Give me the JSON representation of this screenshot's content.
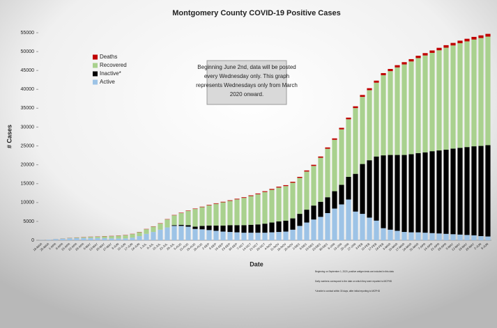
{
  "chart_data": {
    "type": "stacked_bar",
    "title": "Montgomery County COVID-19 Positive Cases",
    "y_label": "# Cases",
    "x_label": "Date",
    "categories": [
      "18-MAR",
      "25-MAR",
      "1-APR",
      "8-APR",
      "15-APR",
      "22-APR",
      "29-APR",
      "6-MAY",
      "13-MAY",
      "20-MAY",
      "27-MAY",
      "3-JUN",
      "10-JUN",
      "17-JUN",
      "24-JUN",
      "1-JUL",
      "8-JUL",
      "15-JUL",
      "22-JUL",
      "29-JUL",
      "5-AUG",
      "12-AUG",
      "19-AUG",
      "26-AUG",
      "2-SEP",
      "9-SEP",
      "16-SEP",
      "23-SEP",
      "30-SEP",
      "7-OCT",
      "14-OCT",
      "21-OCT",
      "28-OCT",
      "4-NOV",
      "11-NOV",
      "18-NOV",
      "25-NOV",
      "2-DEC",
      "9-DEC",
      "16-DEC",
      "23-DEC",
      "30-DEC",
      "6-JAN",
      "13-JAN",
      "20-JAN",
      "27-JAN",
      "3-FEB",
      "10-FEB",
      "17-FEB",
      "24-FEB",
      "3-MAR",
      "10-MAR",
      "17-MAR",
      "24-MAR",
      "31-MAR",
      "7-APR",
      "14-APR",
      "21-APR",
      "28-APR",
      "5-MAY",
      "12-MAY",
      "19-MAY",
      "26-MAY",
      "2-JUN",
      "9-JUN"
    ],
    "series": [
      {
        "name": "Active",
        "color": "#9dc3e6",
        "values": [
          50,
          150,
          320,
          430,
          520,
          560,
          590,
          600,
          580,
          550,
          500,
          480,
          500,
          700,
          1100,
          1700,
          2200,
          2800,
          3400,
          3800,
          3800,
          3600,
          3000,
          2900,
          2700,
          2500,
          2300,
          2200,
          2100,
          2000,
          2000,
          2000,
          2000,
          2100,
          2200,
          2300,
          2800,
          3800,
          4700,
          5500,
          6200,
          7200,
          8400,
          9500,
          10800,
          7600,
          7000,
          6000,
          5200,
          3200,
          2800,
          2500,
          2200,
          2100,
          2100,
          2000,
          1900,
          1800,
          1700,
          1600,
          1500,
          1400,
          1300,
          1100,
          1000
        ]
      },
      {
        "name": "Inactive*",
        "color": "#000000",
        "values": [
          0,
          0,
          0,
          0,
          0,
          0,
          0,
          0,
          0,
          0,
          0,
          0,
          0,
          0,
          0,
          0,
          0,
          0,
          0,
          200,
          300,
          400,
          600,
          900,
          1200,
          1400,
          1600,
          1800,
          1900,
          2000,
          2100,
          2200,
          2400,
          2600,
          2800,
          2900,
          3000,
          3200,
          3400,
          3700,
          4000,
          4200,
          4600,
          5200,
          6000,
          10000,
          13200,
          15200,
          17000,
          19300,
          19800,
          20100,
          20400,
          20700,
          21000,
          21300,
          21700,
          22000,
          22300,
          22700,
          23000,
          23300,
          23600,
          23900,
          24200
        ]
      },
      {
        "name": "Recovered",
        "color": "#a9d18e",
        "values": [
          0,
          0,
          20,
          50,
          100,
          150,
          210,
          300,
          370,
          490,
          590,
          710,
          840,
          940,
          1040,
          1230,
          1430,
          1620,
          2120,
          2610,
          3100,
          3800,
          4690,
          4980,
          5370,
          5760,
          6150,
          6440,
          6830,
          7220,
          7610,
          8000,
          8390,
          8680,
          8970,
          9160,
          9450,
          9530,
          10110,
          10490,
          11670,
          12850,
          13620,
          14690,
          15260,
          17430,
          17800,
          18580,
          19560,
          21240,
          22220,
          23210,
          24000,
          24590,
          25180,
          25670,
          26060,
          26550,
          27040,
          27330,
          27720,
          28010,
          28300,
          28590,
          28780
        ]
      },
      {
        "name": "Deaths",
        "color": "#c00000",
        "values": [
          0,
          0,
          10,
          20,
          30,
          40,
          50,
          50,
          50,
          60,
          60,
          60,
          60,
          60,
          60,
          70,
          70,
          80,
          80,
          90,
          100,
          100,
          110,
          120,
          130,
          140,
          150,
          160,
          170,
          180,
          190,
          200,
          210,
          220,
          230,
          240,
          250,
          270,
          290,
          310,
          330,
          350,
          380,
          410,
          440,
          470,
          500,
          520,
          540,
          560,
          580,
          590,
          600,
          610,
          620,
          630,
          640,
          650,
          660,
          670,
          680,
          690,
          700,
          710,
          720
        ]
      }
    ],
    "ylim": [
      0,
      55000
    ],
    "yticks": [
      0,
      5000,
      10000,
      15000,
      20000,
      25000,
      30000,
      35000,
      40000,
      45000,
      50000,
      55000
    ],
    "grid": false,
    "legend": "upper-left",
    "annotation": [
      "Beginning June 2nd, data will be posted",
      "every Wednesday only. This graph",
      "represents Wednesdays only from March",
      "2020 onward."
    ],
    "footnotes": [
      "Beginning on September 1, 2020, positive antigen tests are included in this data",
      "Daily numbers correspond to the date on which they were reported to MCPHD",
      "*Unable to contact within 30 days, after initial reporting to MCPHD"
    ]
  }
}
